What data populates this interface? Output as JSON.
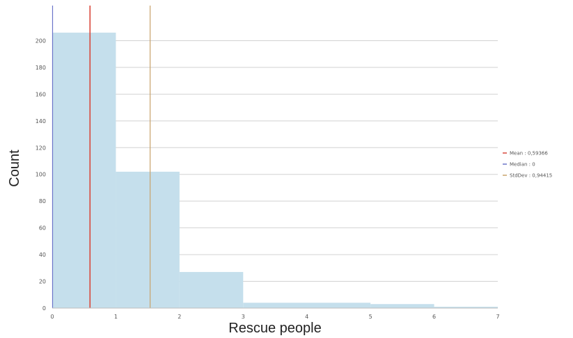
{
  "chart_data": {
    "type": "bar",
    "title": "",
    "xlabel": "Rescue people",
    "ylabel": "Count",
    "bins": [
      {
        "x0": 0,
        "x1": 1,
        "count": 206
      },
      {
        "x0": 1,
        "x1": 2,
        "count": 102
      },
      {
        "x0": 2,
        "x1": 3,
        "count": 27
      },
      {
        "x0": 3,
        "x1": 5,
        "count": 4
      },
      {
        "x0": 5,
        "x1": 6,
        "count": 3
      },
      {
        "x0": 6,
        "x1": 7,
        "count": 1
      }
    ],
    "xlim": [
      0,
      7
    ],
    "ylim": [
      0,
      220
    ],
    "x_ticks": [
      "0",
      "1",
      "2",
      "3",
      "4",
      "5",
      "6",
      "7"
    ],
    "y_ticks": [
      "0",
      "20",
      "40",
      "60",
      "80",
      "100",
      "120",
      "140",
      "160",
      "180",
      "200"
    ],
    "grid": "horizontal",
    "legend_position": "right",
    "stat_lines": [
      {
        "label": "Mean : 0,59366",
        "value": 0.59366,
        "color": "#d9473a"
      },
      {
        "label": "Median : 0",
        "value": 0,
        "color": "#6a74c9"
      },
      {
        "label": "StdDev : 0,94415",
        "value": 1.53781,
        "color": "#c8a36b"
      }
    ],
    "bar_color": "#c5dfec",
    "grid_color": "#d2d2d2"
  }
}
